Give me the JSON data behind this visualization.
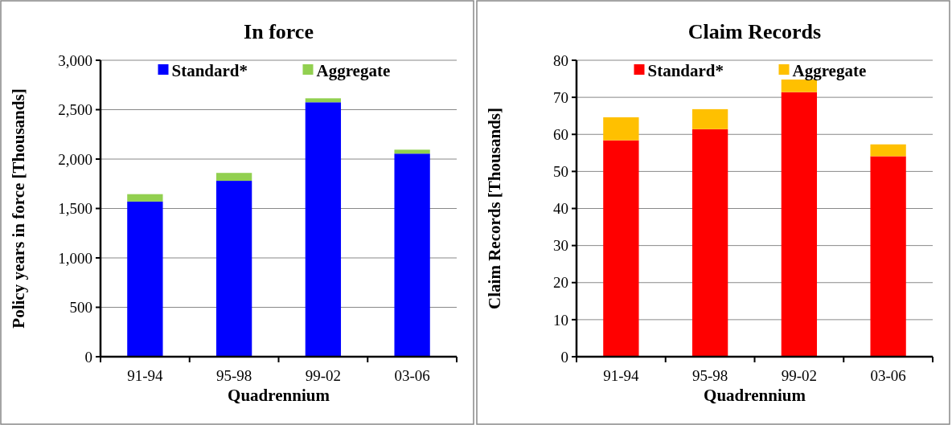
{
  "chart_data": [
    {
      "type": "bar",
      "title": "In force",
      "xlabel": "Quadrennium",
      "ylabel": "Policy years in force [Thousands]",
      "categories": [
        "91-94",
        "95-98",
        "99-02",
        "03-06"
      ],
      "stacked": true,
      "series": [
        {
          "name": "Standard*",
          "color": "#0000ff",
          "values": [
            1570,
            1780,
            2575,
            2055
          ]
        },
        {
          "name": "Aggregate",
          "color": "#92d050",
          "values": [
            75,
            80,
            40,
            40
          ]
        }
      ],
      "ylim": [
        0,
        3000
      ],
      "yticks": [
        {
          "value": 0,
          "label": "0"
        },
        {
          "value": 500,
          "label": "500"
        },
        {
          "value": 1000,
          "label": "1,000"
        },
        {
          "value": 1500,
          "label": "1,500"
        },
        {
          "value": 2000,
          "label": "2,000"
        },
        {
          "value": 2500,
          "label": "2,500"
        },
        {
          "value": 3000,
          "label": "3,000"
        }
      ],
      "grid": "y",
      "legend": "top"
    },
    {
      "type": "bar",
      "title": "Claim Records",
      "xlabel": "Quadrennium",
      "ylabel": "Claim Records  [Thousands]",
      "categories": [
        "91-94",
        "95-98",
        "99-02",
        "03-06"
      ],
      "stacked": true,
      "series": [
        {
          "name": "Standard*",
          "color": "#ff0000",
          "values": [
            58.4,
            61.4,
            71.4,
            54.1
          ]
        },
        {
          "name": "Aggregate",
          "color": "#ffc000",
          "values": [
            6.2,
            5.4,
            3.4,
            3.2
          ]
        }
      ],
      "ylim": [
        0,
        80
      ],
      "yticks": [
        0,
        10,
        20,
        30,
        40,
        50,
        60,
        70,
        80
      ],
      "grid": "y",
      "legend": "top"
    }
  ]
}
